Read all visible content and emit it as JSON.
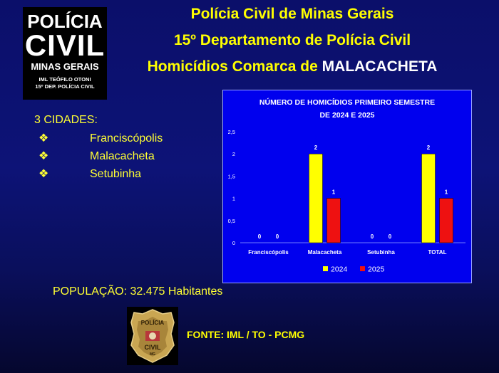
{
  "logo": {
    "line1": "POLÍCIA",
    "line2": "CIVIL",
    "line3": "MINAS GERAIS",
    "line4": "IML TEÓFILO OTONI",
    "line5": "15º DEP. POLÍCIA CIVIL"
  },
  "header": {
    "line1": "Polícia Civil de Minas Gerais",
    "line2": "15º Departamento de Polícia Civil",
    "line3_prefix": "Homicídios Comarca de ",
    "line3_city": "MALACACHETA"
  },
  "cities": {
    "title": "3 CIDADES:",
    "bullet": "❖",
    "items": [
      "Franciscópolis",
      "Malacacheta",
      "Setubinha"
    ]
  },
  "population": "POPULAÇÃO: 32.475 Habitantes",
  "badge": {
    "text_top": "POLÍCIA",
    "text_bottom": "CIVIL",
    "text_state": "MG"
  },
  "source": "FONTE: IML / TO - PCMG",
  "chart_data": {
    "type": "bar",
    "title_line1": "NÚMERO DE HOMICÍDIOS PRIMEIRO SEMESTRE",
    "title_line2": "DE 2024 E 2025",
    "categories": [
      "Franciscópolis",
      "Malacacheta",
      "Setubinha",
      "TOTAL"
    ],
    "series": [
      {
        "name": "2024",
        "values": [
          0,
          2,
          0,
          2
        ],
        "color": "#ffff00"
      },
      {
        "name": "2025",
        "values": [
          0,
          1,
          0,
          1
        ],
        "color": "#ee1111"
      }
    ],
    "ylim": [
      0,
      2.5
    ],
    "yticks": [
      "0",
      "0,5",
      "1",
      "1,5",
      "2",
      "2,5"
    ],
    "ytick_values": [
      0,
      0.5,
      1,
      1.5,
      2,
      2.5
    ],
    "grid": false,
    "legend": "bottom"
  }
}
